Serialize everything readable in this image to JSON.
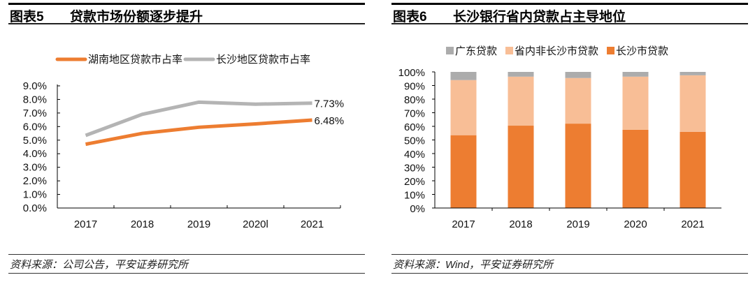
{
  "left": {
    "figure_no": "图表5",
    "title": "贷款市场份额逐步提升",
    "source": "资料来源：公司公告，平安证券研究所"
  },
  "right": {
    "figure_no": "图表6",
    "title": "长沙银行省内贷款占主导地位",
    "source": "资料来源：Wind，平安证券研究所"
  },
  "chart_data": [
    {
      "type": "line",
      "categories": [
        "2017",
        "2018",
        "2019",
        "2020l",
        "2021"
      ],
      "yticks": [
        "0.0%",
        "1.0%",
        "2.0%",
        "3.0%",
        "4.0%",
        "5.0%",
        "6.0%",
        "7.0%",
        "8.0%",
        "9.0%"
      ],
      "ylim": [
        0,
        9
      ],
      "legend": "top",
      "grid": false,
      "series": [
        {
          "name": "湖南地区贷款市占率",
          "color": "#ED7D31",
          "values": [
            4.7,
            5.5,
            5.95,
            6.2,
            6.48
          ],
          "end_label": "6.48%"
        },
        {
          "name": "长沙地区贷款市占率",
          "color": "#B4B4B4",
          "values": [
            5.35,
            6.9,
            7.8,
            7.65,
            7.73
          ],
          "end_label": "7.73%"
        }
      ]
    },
    {
      "type": "bar",
      "stacked": true,
      "categories": [
        "2017",
        "2018",
        "2019",
        "2020",
        "2021"
      ],
      "yticks": [
        "0%",
        "10%",
        "20%",
        "30%",
        "40%",
        "50%",
        "60%",
        "70%",
        "80%",
        "90%",
        "100%"
      ],
      "ylim": [
        0,
        100
      ],
      "legend": "top",
      "grid": false,
      "legend_order": [
        "广东贷款",
        "省内非长沙市贷款",
        "长沙市贷款"
      ],
      "series": [
        {
          "name": "长沙市贷款",
          "color": "#ED7D31",
          "values": [
            53.5,
            60.5,
            62,
            57.5,
            56
          ]
        },
        {
          "name": "省内非长沙市贷款",
          "color": "#F8BE96",
          "values": [
            40.5,
            36,
            33.5,
            39,
            41.5
          ]
        },
        {
          "name": "广东贷款",
          "color": "#ACACAC",
          "values": [
            6,
            3.5,
            4.5,
            3.5,
            2.5
          ]
        }
      ]
    }
  ]
}
